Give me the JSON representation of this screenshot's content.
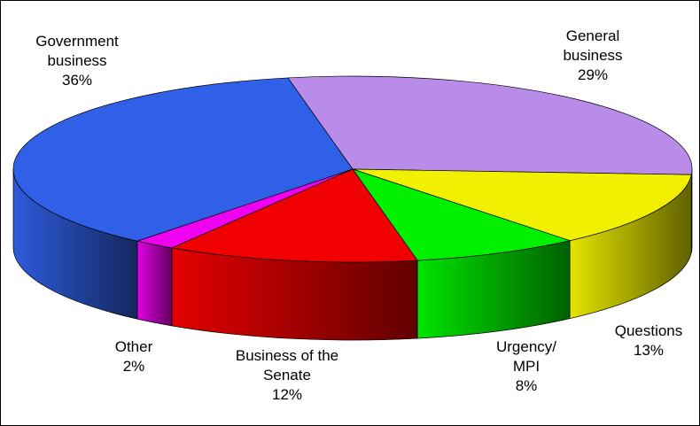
{
  "chart_data": {
    "type": "pie3d",
    "categories": [
      "General business",
      "Questions",
      "Urgency/ MPI",
      "Business of the Senate",
      "Other",
      "Government business"
    ],
    "values": [
      29,
      13,
      8,
      12,
      2,
      36
    ],
    "value_labels": [
      "29%",
      "13%",
      "8%",
      "12%",
      "2%",
      "36%"
    ],
    "colors": [
      "#b88ce8",
      "#f0f000",
      "#00f000",
      "#f00000",
      "#f000f0",
      "#3060e8"
    ]
  }
}
